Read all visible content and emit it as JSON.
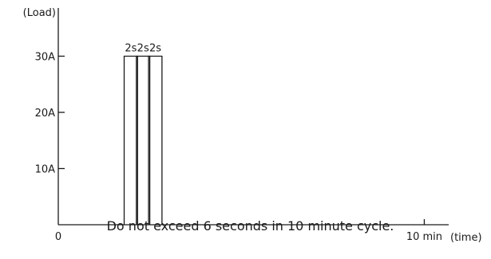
{
  "chart_data": {
    "type": "line",
    "title": "",
    "xlabel": "(time)",
    "ylabel": "(Load)",
    "x_ticks": [
      {
        "value": 0,
        "label": "0"
      },
      {
        "value": 600,
        "label": "10 min"
      }
    ],
    "y_ticks": [
      {
        "value": 10,
        "label": "10A"
      },
      {
        "value": 20,
        "label": "20A"
      },
      {
        "value": 30,
        "label": "30A"
      }
    ],
    "ylim": [
      0,
      40
    ],
    "xlim": [
      0,
      640
    ],
    "grid": false,
    "pulses": [
      {
        "start_s": 108,
        "duration_s": 2,
        "value": 30,
        "label": "2s"
      },
      {
        "start_s": 128,
        "duration_s": 2,
        "value": 30,
        "label": "2s"
      },
      {
        "start_s": 148,
        "duration_s": 2,
        "value": 30,
        "label": "2s"
      }
    ]
  },
  "caption": "Do not exceed 6 seconds in 10 minute cycle."
}
